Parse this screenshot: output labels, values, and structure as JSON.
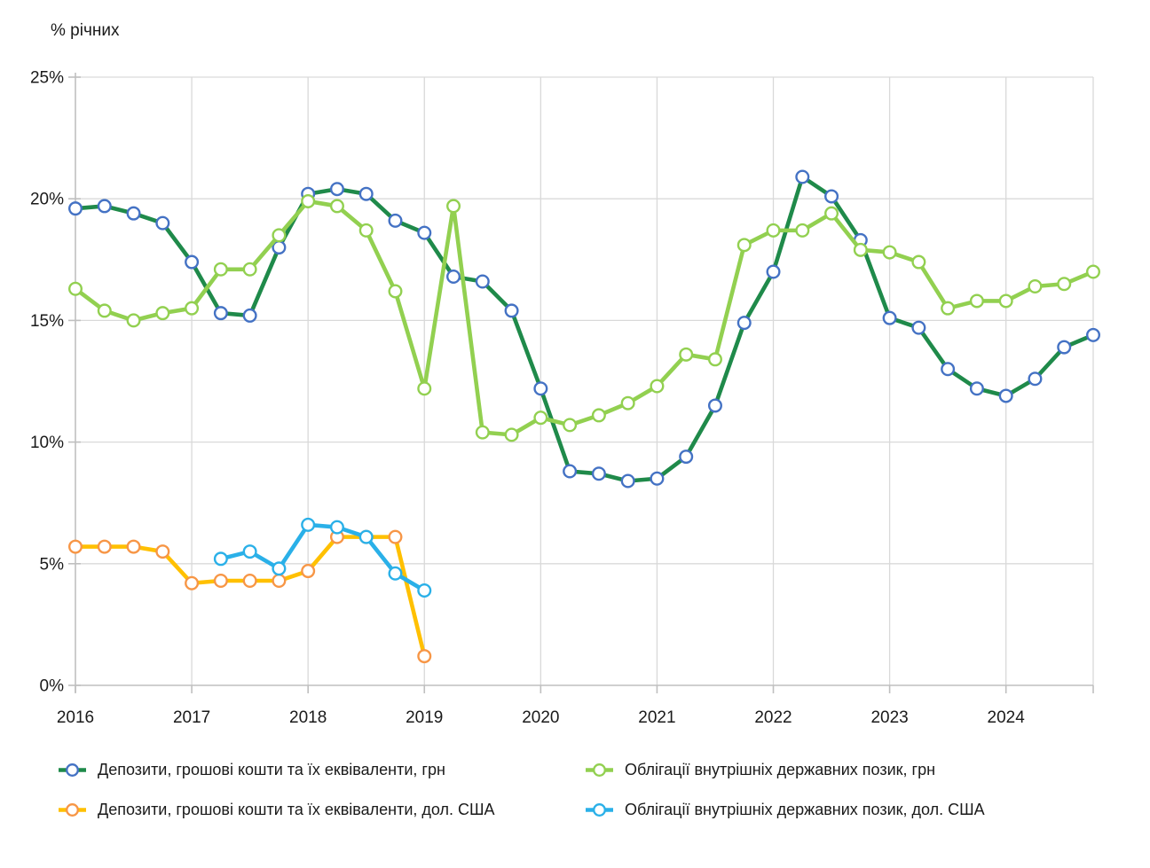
{
  "chart_data": {
    "type": "line",
    "title": "% річних",
    "ylabel": "% річних",
    "grid": true,
    "legend_position": "bottom",
    "y_axis": {
      "min": 0,
      "max": 25,
      "step": 5,
      "unit": "%"
    },
    "x_axis": {
      "min": 2016.0,
      "max": 2024.75,
      "frequency": "quarterly"
    },
    "y_tick_labels": [
      "0%",
      "5%",
      "10%",
      "15%",
      "20%",
      "25%"
    ],
    "x_ticks": [
      2016,
      2017,
      2018,
      2019,
      2020,
      2021,
      2022,
      2023,
      2024
    ],
    "x_tick_labels": [
      "2016",
      "2017",
      "2018",
      "2019",
      "2020",
      "2021",
      "2022",
      "2023",
      "2024"
    ],
    "colors": {
      "grid": "#d9d9d9",
      "axis": "#bfbfbf",
      "text": "#1a1a1a",
      "background": "#ffffff"
    },
    "series": [
      {
        "name": "Депозити, грошові кошти та їх еквіваленти, грн",
        "color": "#1f8a4a",
        "marker_border": "#4472c4",
        "x": [
          2016.0,
          2016.25,
          2016.5,
          2016.75,
          2017.0,
          2017.25,
          2017.5,
          2017.75,
          2018.0,
          2018.25,
          2018.5,
          2018.75,
          2019.0,
          2019.25,
          2019.5,
          2019.75,
          2020.0,
          2020.25,
          2020.5,
          2020.75,
          2021.0,
          2021.25,
          2021.5,
          2021.75,
          2022.0,
          2022.25,
          2022.5,
          2022.75,
          2023.0,
          2023.25,
          2023.5,
          2023.75,
          2024.0,
          2024.25,
          2024.5,
          2024.75
        ],
        "values": [
          19.6,
          19.7,
          19.4,
          19.0,
          17.4,
          15.3,
          15.2,
          18.0,
          20.2,
          20.4,
          20.2,
          19.1,
          18.6,
          16.8,
          16.6,
          15.4,
          12.2,
          8.8,
          8.7,
          8.4,
          8.5,
          9.4,
          11.5,
          14.9,
          17.0,
          20.9,
          20.1,
          18.3,
          15.1,
          14.7,
          13.0,
          12.2,
          11.9,
          12.6,
          13.9,
          14.4
        ]
      },
      {
        "name": "Облігації внутрішніх державних позик, грн",
        "color": "#92d050",
        "marker_border": "#92d050",
        "x": [
          2016.0,
          2016.25,
          2016.5,
          2016.75,
          2017.0,
          2017.25,
          2017.5,
          2017.75,
          2018.0,
          2018.25,
          2018.5,
          2018.75,
          2019.0,
          2019.25,
          2019.5,
          2019.75,
          2020.0,
          2020.25,
          2020.5,
          2020.75,
          2021.0,
          2021.25,
          2021.5,
          2021.75,
          2022.0,
          2022.25,
          2022.5,
          2022.75,
          2023.0,
          2023.25,
          2023.5,
          2023.75,
          2024.0,
          2024.25,
          2024.5,
          2024.75
        ],
        "values": [
          16.3,
          15.4,
          15.0,
          15.3,
          15.5,
          17.1,
          17.1,
          18.5,
          19.9,
          19.7,
          18.7,
          16.2,
          12.2,
          19.7,
          10.4,
          10.3,
          11.0,
          10.7,
          11.1,
          11.6,
          12.3,
          13.6,
          13.4,
          18.1,
          18.7,
          18.7,
          19.4,
          17.9,
          17.8,
          17.4,
          15.5,
          15.8,
          15.8,
          16.4,
          16.5,
          17.0
        ]
      },
      {
        "name": "Депозити, грошові кошти та їх еквіваленти, дол. США",
        "color": "#ffc000",
        "marker_border": "#f79646",
        "x": [
          2016.0,
          2016.25,
          2016.5,
          2016.75,
          2017.0,
          2017.25,
          2017.5,
          2017.75,
          2018.0,
          2018.25,
          2018.5,
          2018.75,
          2019.0
        ],
        "values": [
          5.7,
          5.7,
          5.7,
          5.5,
          4.2,
          4.3,
          4.3,
          4.3,
          4.7,
          6.1,
          6.1,
          6.1,
          1.2
        ]
      },
      {
        "name": "Облігації внутрішніх державних позик, дол. США",
        "color": "#2ab0e8",
        "marker_border": "#2ab0e8",
        "x": [
          2017.25,
          2017.5,
          2017.75,
          2018.0,
          2018.25,
          2018.5,
          2018.75,
          2019.0
        ],
        "values": [
          5.2,
          5.5,
          4.8,
          6.6,
          6.5,
          6.1,
          4.6,
          3.9
        ]
      }
    ]
  }
}
